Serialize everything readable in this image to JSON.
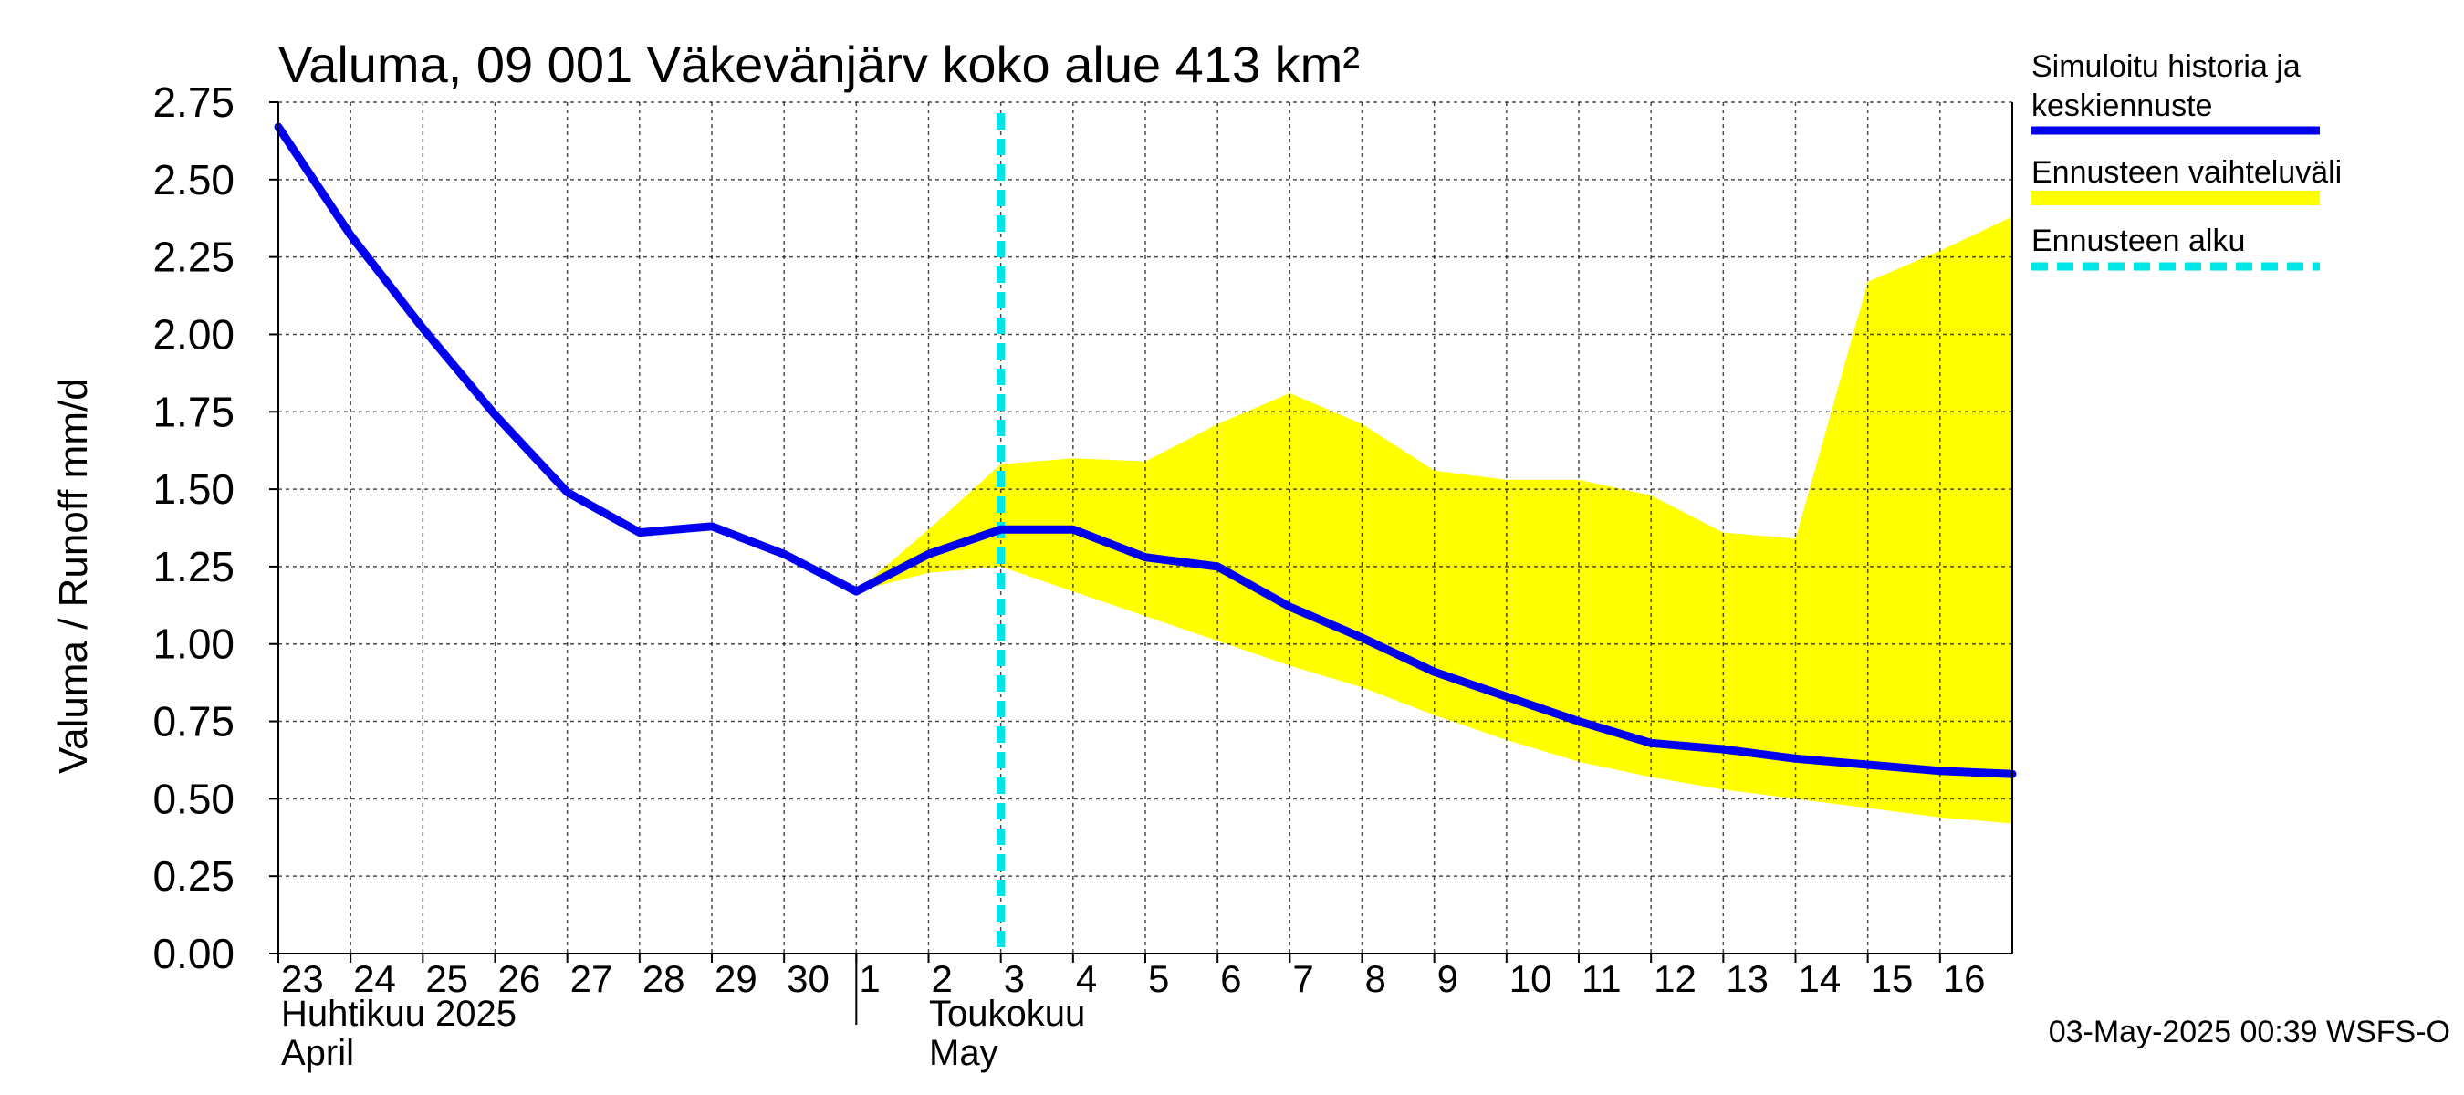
{
  "chart_data": {
    "type": "line",
    "title": "Valuma, 09 001 Väkevänjärv koko alue 413 km²",
    "ylabel": "Valuma / Runoff    mm/d",
    "ylim": [
      0,
      2.75
    ],
    "yticks": [
      "0.00",
      "0.25",
      "0.50",
      "0.75",
      "1.00",
      "1.25",
      "1.50",
      "1.75",
      "2.00",
      "2.25",
      "2.50",
      "2.75"
    ],
    "x_dates": [
      "2025-04-23",
      "2025-04-24",
      "2025-04-25",
      "2025-04-26",
      "2025-04-27",
      "2025-04-28",
      "2025-04-29",
      "2025-04-30",
      "2025-05-01",
      "2025-05-02",
      "2025-05-03",
      "2025-05-04",
      "2025-05-05",
      "2025-05-06",
      "2025-05-07",
      "2025-05-08",
      "2025-05-09",
      "2025-05-10",
      "2025-05-11",
      "2025-05-12",
      "2025-05-13",
      "2025-05-14",
      "2025-05-15",
      "2025-05-16"
    ],
    "x_tick_labels": [
      "23",
      "24",
      "25",
      "26",
      "27",
      "28",
      "29",
      "30",
      "1",
      "2",
      "3",
      "4",
      "5",
      "6",
      "7",
      "8",
      "9",
      "10",
      "11",
      "12",
      "13",
      "14",
      "15",
      "16"
    ],
    "month_labels": [
      {
        "line1": "Huhtikuu  2025",
        "line2": "April"
      },
      {
        "line1": "Toukokuu",
        "line2": "May"
      }
    ],
    "series": [
      {
        "name": "Simuloitu historia ja keskiennuste",
        "color": "#0000ee",
        "x": [
          "2025-04-23",
          "2025-04-24",
          "2025-04-25",
          "2025-04-26",
          "2025-04-27",
          "2025-04-28",
          "2025-04-29",
          "2025-04-30",
          "2025-05-01",
          "2025-05-02",
          "2025-05-03",
          "2025-05-04",
          "2025-05-05",
          "2025-05-06",
          "2025-05-07",
          "2025-05-08",
          "2025-05-09",
          "2025-05-10",
          "2025-05-11",
          "2025-05-12",
          "2025-05-13",
          "2025-05-14",
          "2025-05-15",
          "2025-05-16",
          "2025-05-17"
        ],
        "values": [
          2.67,
          2.32,
          2.02,
          1.74,
          1.49,
          1.36,
          1.38,
          1.29,
          1.17,
          1.29,
          1.37,
          1.37,
          1.28,
          1.25,
          1.12,
          1.02,
          0.91,
          0.83,
          0.75,
          0.68,
          0.66,
          0.63,
          0.61,
          0.59,
          0.58
        ]
      }
    ],
    "band": {
      "name": "Ennusteen vaihteluväli",
      "color": "#ffff00",
      "x": [
        "2025-05-01",
        "2025-05-02",
        "2025-05-03",
        "2025-05-04",
        "2025-05-05",
        "2025-05-06",
        "2025-05-07",
        "2025-05-08",
        "2025-05-09",
        "2025-05-10",
        "2025-05-11",
        "2025-05-12",
        "2025-05-13",
        "2025-05-14",
        "2025-05-15",
        "2025-05-16",
        "2025-05-17"
      ],
      "upper": [
        1.17,
        1.37,
        1.58,
        1.6,
        1.59,
        1.71,
        1.81,
        1.71,
        1.56,
        1.53,
        1.53,
        1.48,
        1.36,
        1.34,
        2.17,
        2.27,
        2.38
      ],
      "lower": [
        1.17,
        1.23,
        1.25,
        1.17,
        1.09,
        1.01,
        0.93,
        0.86,
        0.77,
        0.69,
        0.62,
        0.57,
        0.53,
        0.5,
        0.47,
        0.44,
        0.42
      ]
    },
    "forecast_start": {
      "name": "Ennusteen alku",
      "color": "#00e5e5",
      "x": "2025-05-03"
    },
    "grid": true,
    "legend_position": "right"
  },
  "legend": [
    {
      "line1": "Simuloitu historia ja",
      "line2": "keskiennuste",
      "color": "#0000ee",
      "style": "solid"
    },
    {
      "line1": "Ennusteen vaihteluväli",
      "line2": "",
      "color": "#ffff00",
      "style": "thick"
    },
    {
      "line1": "Ennusteen alku",
      "line2": "",
      "color": "#00e5e5",
      "style": "dashed"
    }
  ],
  "footer": "03-May-2025 00:39 WSFS-O"
}
